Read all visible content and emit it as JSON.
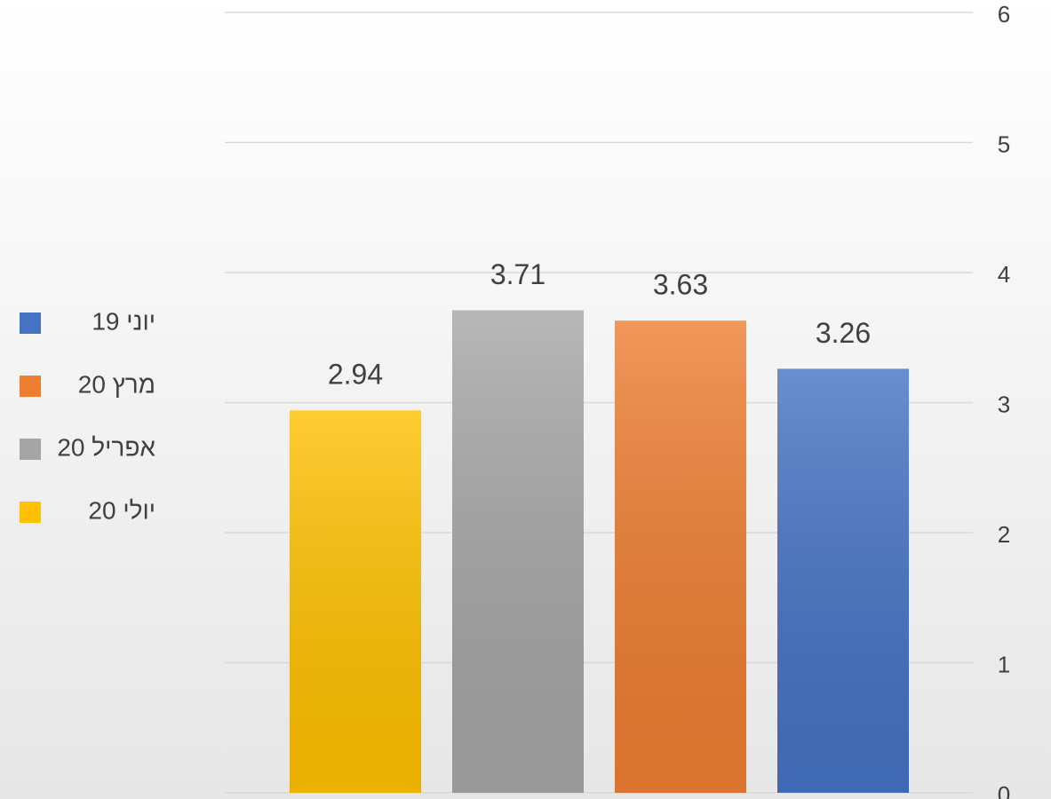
{
  "chart_data": {
    "type": "bar",
    "series": [
      {
        "name": "יוני 19",
        "color": "#4472c4",
        "values": [
          3.26
        ]
      },
      {
        "name": "מרץ 20",
        "color": "#ed7d31",
        "values": [
          3.63
        ]
      },
      {
        "name": "אפריל 20",
        "color": "#a5a5a5",
        "values": [
          3.71
        ]
      },
      {
        "name": "יולי 20",
        "color": "#ffc000",
        "values": [
          2.94
        ]
      }
    ],
    "ylim": [
      0,
      6
    ],
    "yticks": [
      0,
      1,
      2,
      3,
      4,
      5,
      6
    ],
    "grid": true,
    "legend": "left"
  }
}
